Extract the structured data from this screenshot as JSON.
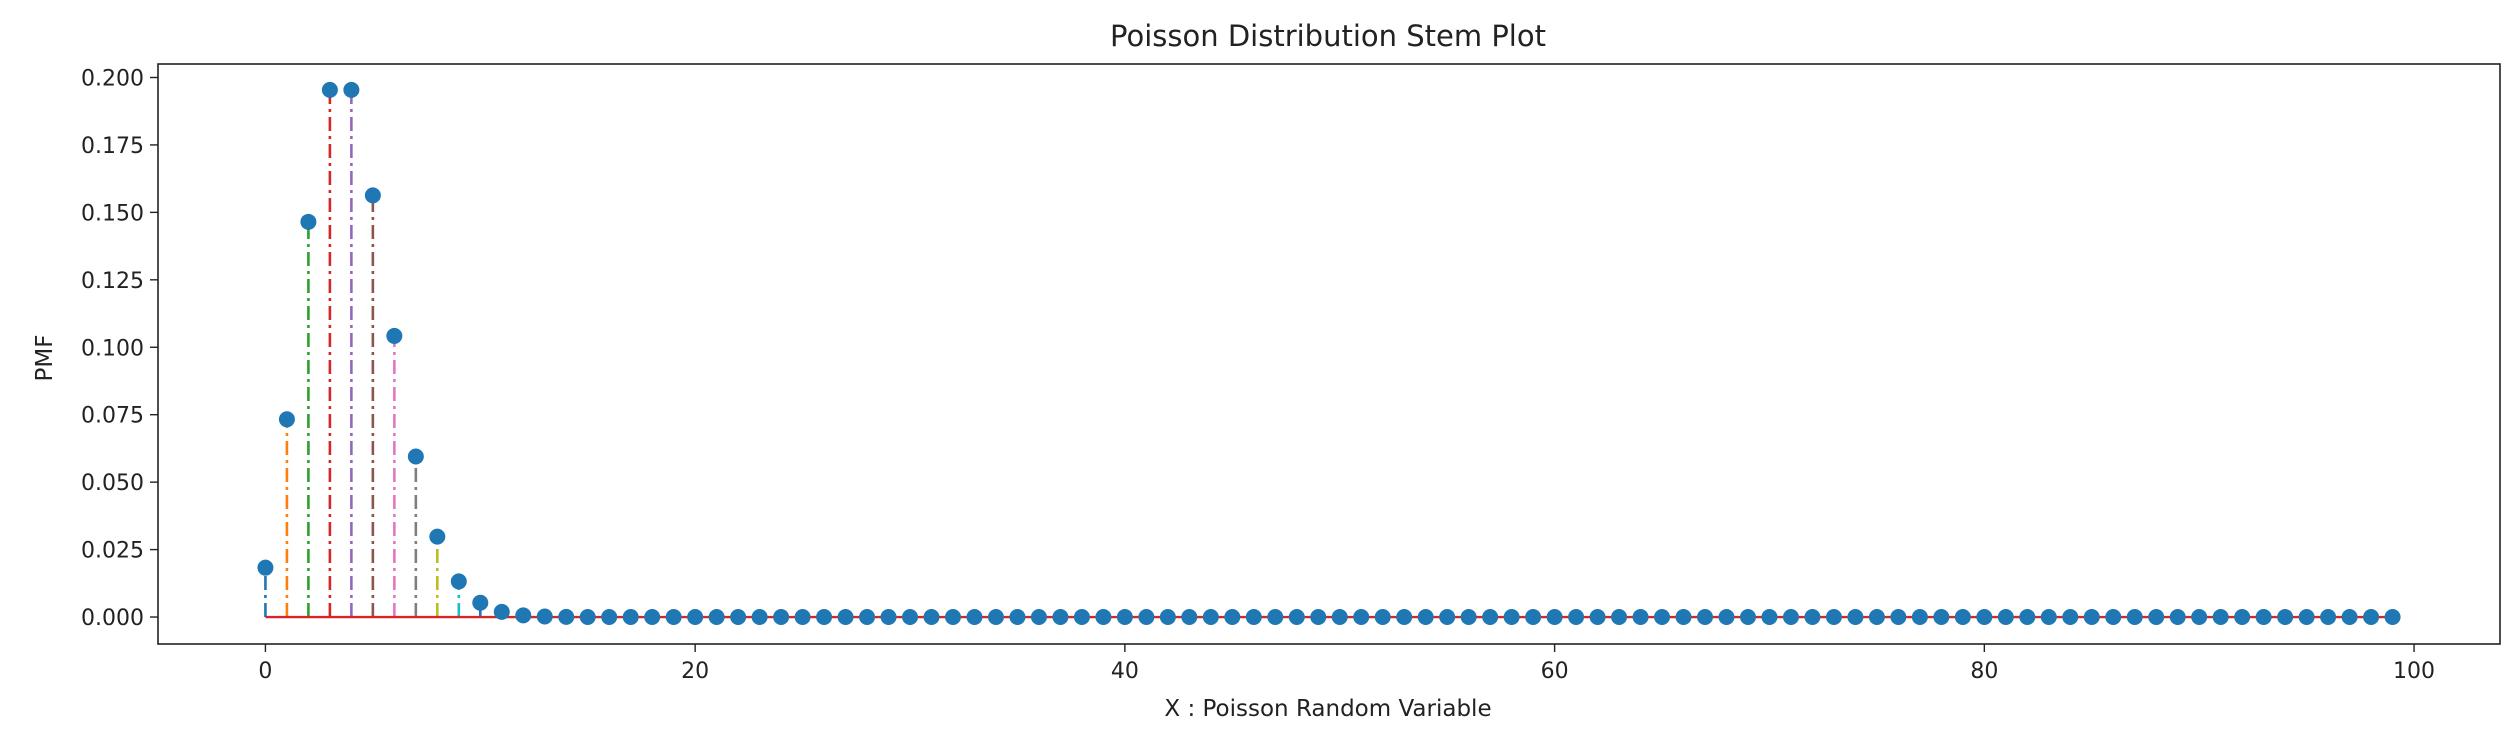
{
  "chart_data": {
    "type": "stem",
    "title": "Poisson Distribution Stem Plot",
    "xlabel": "X : Poisson Random Variable",
    "ylabel": "PMF",
    "xlim": [
      -5,
      104
    ],
    "ylim": [
      -0.01,
      0.205
    ],
    "xticks": [
      0,
      20,
      40,
      60,
      80,
      100
    ],
    "yticks": [
      0.0,
      0.025,
      0.05,
      0.075,
      0.1,
      0.125,
      0.15,
      0.175,
      0.2
    ],
    "ytick_labels": [
      "0.000",
      "0.025",
      "0.050",
      "0.075",
      "0.100",
      "0.125",
      "0.150",
      "0.175",
      "0.200"
    ],
    "grid": false,
    "legend": "none",
    "x_range": [
      0,
      99
    ],
    "values_head": [
      0.0183,
      0.0733,
      0.1465,
      0.1954,
      0.1954,
      0.1563,
      0.1042,
      0.0595,
      0.0298,
      0.0132,
      0.0053,
      0.0019,
      0.0006,
      0.0002,
      5e-05
    ],
    "values_tail": 0.0,
    "marker_color": "#1f77b4",
    "baseline_color": "#d62728",
    "stem_colors": [
      "#1f77b4",
      "#ff7f0e",
      "#2ca02c",
      "#d62728",
      "#9467bd",
      "#8c564b",
      "#e377c2",
      "#7f7f7f",
      "#bcbd22",
      "#17becf"
    ]
  }
}
